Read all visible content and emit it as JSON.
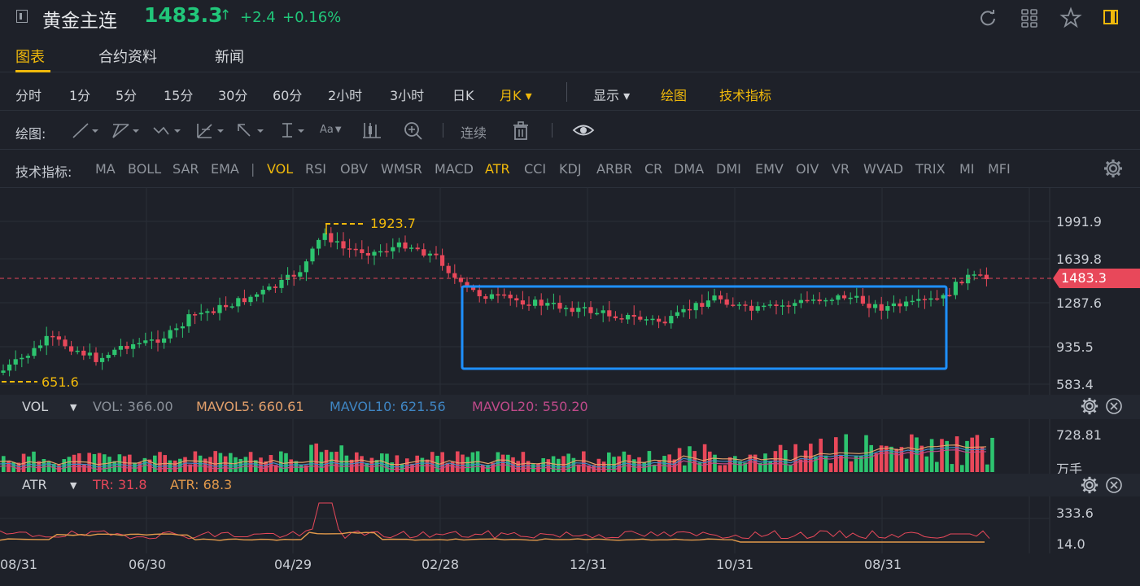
{
  "header": {
    "symbol_name": "黄金主连",
    "price": "1483.3",
    "price_arrow": "↑",
    "change": "+2.4",
    "change_pct": "+0.16%",
    "icons": [
      "refresh-icon",
      "grid-icon",
      "star-icon",
      "layout-icon"
    ]
  },
  "tabs": [
    {
      "label": "图表",
      "active": true
    },
    {
      "label": "合约资料",
      "active": false
    },
    {
      "label": "新闻",
      "active": false
    }
  ],
  "periods": [
    {
      "label": "分时"
    },
    {
      "label": "1分"
    },
    {
      "label": "5分"
    },
    {
      "label": "15分"
    },
    {
      "label": "30分"
    },
    {
      "label": "60分"
    },
    {
      "label": "2小时"
    },
    {
      "label": "3小时"
    },
    {
      "label": "日K"
    },
    {
      "label": "月K ▾",
      "active": true
    }
  ],
  "period_extra": {
    "display": "显示 ▾",
    "draw": "绘图",
    "indicators": "技术指标"
  },
  "draw_toolbar": {
    "label": "绘图:",
    "continuous": "连续",
    "tools": [
      "line-tool-icon",
      "ray-tool-icon",
      "wave-tool-icon",
      "fib-tool-icon",
      "arrow-tool-icon",
      "cursor-tool-icon",
      "text-tool-icon",
      "candle-tool-icon",
      "zoom-icon",
      "trash-icon",
      "eye-icon"
    ],
    "text_tool": "Aa"
  },
  "indicators": {
    "label": "技术指标:",
    "main": [
      "MA",
      "BOLL",
      "SAR",
      "EMA"
    ],
    "sub": [
      "VOL",
      "RSI",
      "OBV",
      "WMSR",
      "MACD",
      "ATR",
      "CCI",
      "KDJ",
      "ARBR",
      "CR",
      "DMA",
      "DMI",
      "EMV",
      "OIV",
      "VR",
      "WVAD",
      "TRIX",
      "MI",
      "MFI"
    ],
    "active": [
      "VOL",
      "ATR"
    ]
  },
  "main_chart": {
    "price_axis": [
      "1991.9",
      "1639.8",
      "1287.6",
      "935.5",
      "583.4"
    ],
    "current_price_tag": "1483.3",
    "high_label": "1923.7",
    "low_label": "651.6",
    "x_axis": [
      "08/31",
      "06/30",
      "04/29",
      "02/28",
      "12/31",
      "10/31",
      "08/31"
    ]
  },
  "vol_panel": {
    "title": "VOL",
    "values": [
      {
        "label": "VOL: 366.00",
        "color": "#8a9099"
      },
      {
        "label": "MAVOL5: 660.61",
        "color": "#e3a06b"
      },
      {
        "label": "MAVOL10: 621.56",
        "color": "#3f86c4"
      },
      {
        "label": "MAVOL20: 550.20",
        "color": "#c04a8a"
      }
    ],
    "axis": [
      "728.81",
      "万手"
    ]
  },
  "atr_panel": {
    "title": "ATR",
    "values": [
      {
        "label": "TR: 31.8",
        "color": "#e8485a"
      },
      {
        "label": "ATR: 68.3",
        "color": "#e39a4b"
      }
    ],
    "axis": [
      "333.6",
      "14.0"
    ]
  },
  "colors": {
    "up": "#2dc46f",
    "down": "#e8485a",
    "accent": "#f0b90b",
    "highlight_box": "#1e90ff"
  }
}
